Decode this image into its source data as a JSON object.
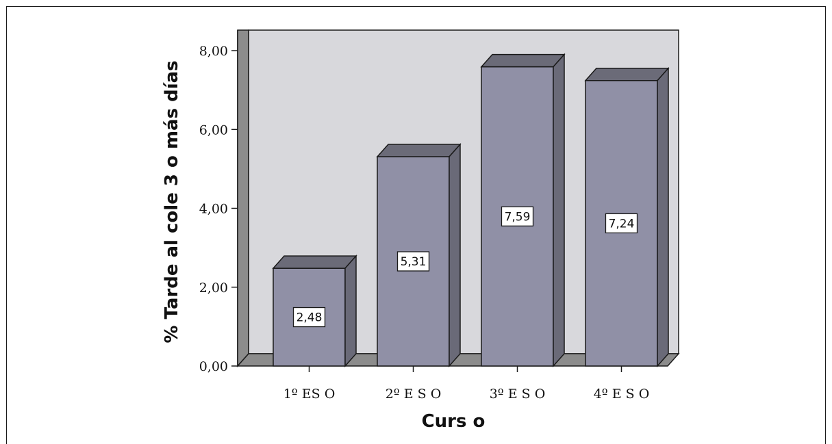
{
  "chart_data": {
    "type": "bar",
    "categories": [
      "1º ES O",
      "2º E S O",
      "3º E S O",
      "4º E S O"
    ],
    "values": [
      2.48,
      5.31,
      7.59,
      7.24
    ],
    "value_labels": [
      "2,48",
      "5,31",
      "7,59",
      "7,24"
    ],
    "title": "",
    "xlabel": "Curs o",
    "ylabel": "% Tarde al cole 3 o más días",
    "ylim": [
      0,
      8
    ],
    "yticks": [
      0,
      2,
      4,
      6,
      8
    ],
    "ytick_labels": [
      "0,00",
      "2,00",
      "4,00",
      "6,00",
      "8,00"
    ],
    "grid": false,
    "three_d": true
  },
  "colors": {
    "bar_front": "#9090a6",
    "bar_top": "#6b6b78",
    "bar_side": "#6a6a78",
    "back_wall": "#d8d8dc",
    "left_wall": "#8c8c8c",
    "floor": "#8c8c8c"
  }
}
